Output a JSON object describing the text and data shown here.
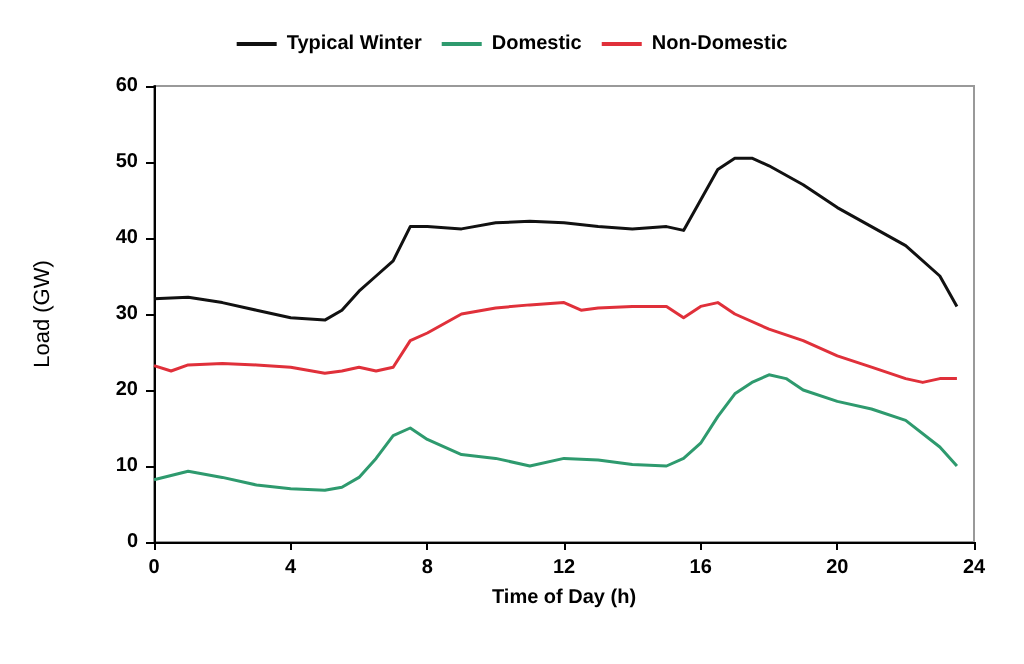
{
  "chart_data": {
    "type": "line",
    "xlabel": "Time of Day (h)",
    "ylabel": "Load (GW)",
    "xlim": [
      0,
      24
    ],
    "xticks": [
      0,
      4,
      8,
      12,
      16,
      20,
      24
    ],
    "ylim": [
      0,
      60
    ],
    "yticks": [
      0,
      10,
      20,
      30,
      40,
      50,
      60
    ],
    "grid": false,
    "legend": "top",
    "marker": "none",
    "line_style": "solid",
    "series": [
      {
        "name": "Typical Winter",
        "color": "#111111",
        "x": [
          0,
          1,
          2,
          3,
          4,
          5,
          5.5,
          6,
          6.5,
          7,
          7.5,
          8,
          9,
          10,
          11,
          12,
          13,
          14,
          15,
          15.5,
          16,
          16.5,
          17,
          17.5,
          18,
          19,
          20,
          21,
          22,
          23,
          23.5
        ],
        "values": [
          32,
          32.2,
          31.5,
          30.5,
          29.5,
          29.2,
          30.5,
          33,
          35,
          37,
          41.5,
          41.5,
          41.2,
          42,
          42.2,
          42,
          41.5,
          41.2,
          41.5,
          41,
          45,
          49,
          50.5,
          50.5,
          49.5,
          47,
          44,
          41.5,
          39,
          35,
          31
        ]
      },
      {
        "name": "Domestic",
        "color": "#2e9a6e",
        "x": [
          0,
          1,
          2,
          3,
          4,
          5,
          5.5,
          6,
          6.5,
          7,
          7.5,
          8,
          9,
          10,
          11,
          12,
          13,
          14,
          15,
          15.5,
          16,
          16.5,
          17,
          17.5,
          18,
          18.5,
          19,
          20,
          21,
          22,
          23,
          23.5
        ],
        "values": [
          8.2,
          9.3,
          8.5,
          7.5,
          7,
          6.8,
          7.2,
          8.5,
          11,
          14,
          15,
          13.5,
          11.5,
          11,
          10,
          11,
          10.8,
          10.2,
          10,
          11,
          13,
          16.5,
          19.5,
          21,
          22,
          21.5,
          20,
          18.5,
          17.5,
          16,
          12.5,
          10
        ]
      },
      {
        "name": "Non-Domestic",
        "color": "#e0303a",
        "x": [
          0,
          0.5,
          1,
          2,
          3,
          4,
          5,
          5.5,
          6,
          6.5,
          7,
          7.5,
          8,
          9,
          10,
          11,
          12,
          12.5,
          13,
          14,
          15,
          15.5,
          16,
          16.5,
          17,
          18,
          19,
          20,
          21,
          22,
          22.5,
          23,
          23.5
        ],
        "values": [
          23.2,
          22.5,
          23.3,
          23.5,
          23.3,
          23,
          22.2,
          22.5,
          23,
          22.5,
          23,
          26.5,
          27.5,
          30,
          30.8,
          31.2,
          31.5,
          30.5,
          30.8,
          31,
          31,
          29.5,
          31,
          31.5,
          30,
          28,
          26.5,
          24.5,
          23,
          21.5,
          21,
          21.5,
          21.5
        ]
      }
    ]
  }
}
